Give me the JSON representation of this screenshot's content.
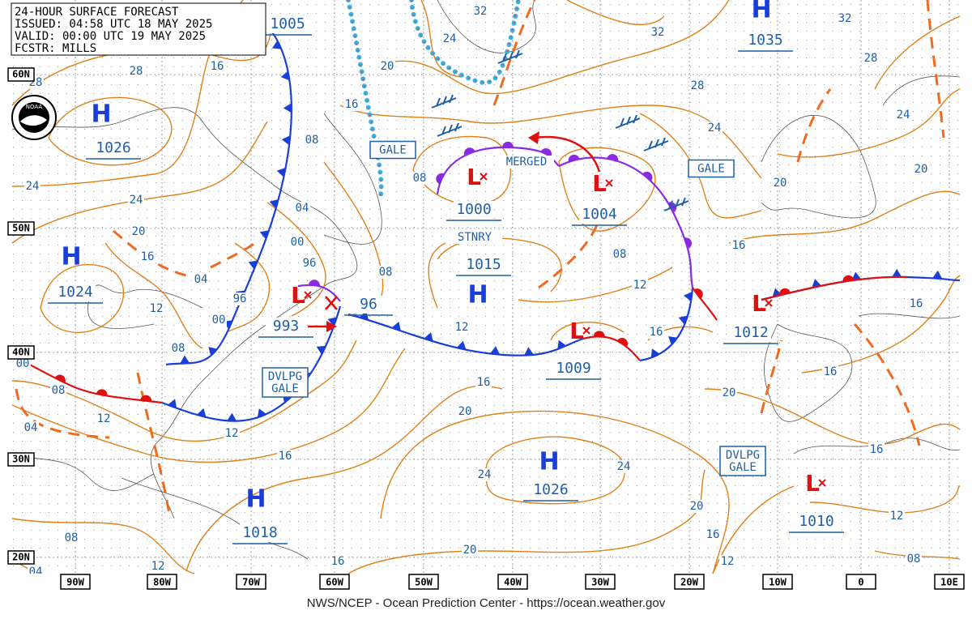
{
  "header": {
    "lines": [
      "24-HOUR SURFACE FORECAST",
      "ISSUED: 04:58 UTC 18 MAY 2025",
      "VALID:  00:00 UTC 19 MAY 2025",
      "FCSTR:  MILLS"
    ]
  },
  "logo": "NOAA",
  "footer": "NWS/NCEP - Ocean Prediction Center - https://ocean.weather.gov",
  "longitude_labels": [
    "90W",
    "80W",
    "70W",
    "60W",
    "50W",
    "40W",
    "30W",
    "20W",
    "10W",
    "0",
    "10E"
  ],
  "latitude_labels": [
    "60N",
    "50N",
    "40N",
    "30N",
    "20N"
  ],
  "pressure_centers": [
    {
      "type": "H",
      "value": 1035
    },
    {
      "type": "H",
      "value": 1026
    },
    {
      "type": "L",
      "value": 1000
    },
    {
      "type": "L",
      "value": 1004
    },
    {
      "type": "H",
      "value": 1024
    },
    {
      "type": "H",
      "value": 1015
    },
    {
      "type": "L",
      "value": 993
    },
    {
      "type": "L",
      "value": 1012
    },
    {
      "type": "L",
      "value": 1009
    },
    {
      "type": "H",
      "value": 1026
    },
    {
      "type": "H",
      "value": 1018
    },
    {
      "type": "L",
      "value": 1010
    }
  ],
  "other_pressure_labels": [
    1005,
    96
  ],
  "isobar_labels": [
    "28",
    "16",
    "20",
    "32",
    "32",
    "32",
    "28",
    "28",
    "24",
    "24",
    "20",
    "20",
    "16",
    "28",
    "24",
    "24",
    "20",
    "16",
    "04",
    "96",
    "00",
    "08",
    "00",
    "08",
    "04",
    "12",
    "12",
    "12",
    "16",
    "16",
    "08",
    "04",
    "00",
    "96",
    "08",
    "08",
    "24",
    "12",
    "16",
    "20",
    "24",
    "24",
    "08",
    "12",
    "16",
    "20",
    "16",
    "16",
    "16",
    "12",
    "08",
    "20",
    "16",
    "12",
    "20",
    "16",
    "12",
    "08",
    "04"
  ],
  "boxed_labels": [
    [
      "GALE"
    ],
    [
      "GALE"
    ],
    [
      "DVLPG",
      "GALE"
    ],
    [
      "DVLPG",
      "GALE"
    ]
  ],
  "front_labels": [
    "MERGED",
    "STNRY"
  ]
}
